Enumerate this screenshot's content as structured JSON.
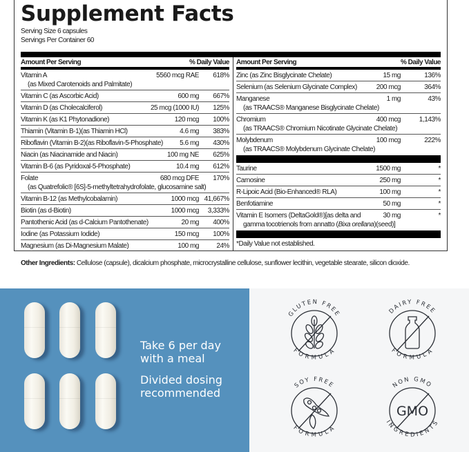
{
  "title": "Supplement Facts",
  "serving_size": "Serving Size 6 capsules",
  "servings_per_container": "Servings Per Container 60",
  "header": {
    "amount": "Amount Per Serving",
    "dv": "% Daily Value"
  },
  "left_rows": [
    {
      "name": "Vitamin A",
      "sub": "(as Mixed Carotenoids and Palmitate)",
      "amount": "5560 mcg RAE",
      "dv": "618%"
    },
    {
      "name": "Vitamin C (as Ascorbic Acid)",
      "amount": "600 mg",
      "dv": "667%"
    },
    {
      "name": "Vitamin D (as Cholecalciferol)",
      "amount": "25 mcg (1000 IU)",
      "dv": "125%"
    },
    {
      "name": "Vitamin K (as K1 Phytonadione)",
      "amount": "120 mcg",
      "dv": "100%"
    },
    {
      "name": "Thiamin (Vitamin B-1)(as Thiamin HCl)",
      "amount": "4.6 mg",
      "dv": "383%"
    },
    {
      "name": "Riboflavin (Vitamin B-2)(as Riboflavin-5-Phosphate)",
      "amount": "5.6 mg",
      "dv": "430%"
    },
    {
      "name": "Niacin (as Niacinamide and Niacin)",
      "amount": "100 mg NE",
      "dv": "625%"
    },
    {
      "name": "Vitamin B-6 (as Pyridoxal-5-Phosphate)",
      "amount": "10.4 mg",
      "dv": "612%"
    },
    {
      "name": "Folate",
      "sub": "(as Quatrefolic® [6S]-5-methyltetrahydrofolate, glucosamine salt)",
      "amount": "680 mcg DFE",
      "dv": "170%"
    },
    {
      "name": "Vitamin B-12 (as Methylcobalamin)",
      "amount": "1000 mcg",
      "dv": "41,667%"
    },
    {
      "name": "Biotin (as d-Biotin)",
      "amount": "1000 mcg",
      "dv": "3,333%"
    },
    {
      "name": "Pantothenic Acid (as d-Calcium Pantothenate)",
      "amount": "20 mg",
      "dv": "400%"
    },
    {
      "name": "Iodine (as Potassium Iodide)",
      "amount": "150 mcg",
      "dv": "100%"
    },
    {
      "name": "Magnesium (as Di-Magnesium Malate)",
      "amount": "100 mg",
      "dv": "24%"
    }
  ],
  "right_rows": [
    {
      "name": "Zinc (as Zinc Bisglycinate Chelate)",
      "amount": "15 mg",
      "dv": "136%"
    },
    {
      "name": "Selenium (as Selenium Glycinate Complex)",
      "amount": "200 mcg",
      "dv": "364%"
    },
    {
      "name": "Manganese",
      "sub": "(as TRAACS® Manganese Bisglycinate Chelate)",
      "amount": "1 mg",
      "dv": "43%"
    },
    {
      "name": "Chromium",
      "sub": "(as TRAACS® Chromium Nicotinate Glycinate Chelate)",
      "amount": "400 mcg",
      "dv": "1,143%"
    },
    {
      "name": "Molybdenum",
      "sub": "(as TRAACS® Molybdenum Glycinate Chelate)",
      "amount": "100 mcg",
      "dv": "222%"
    }
  ],
  "right_rows2": [
    {
      "name": "Taurine",
      "amount": "1500 mg",
      "dv": "*"
    },
    {
      "name": "Carnosine",
      "amount": "250 mg",
      "dv": "*"
    },
    {
      "name": "R-Lipoic Acid (Bio-Enhanced® RLA)",
      "amount": "100 mg",
      "dv": "*"
    },
    {
      "name": "Benfotiamine",
      "amount": "50 mg",
      "dv": "*"
    },
    {
      "name": "Vitamin E Isomers (DeltaGold®)[as delta and",
      "sub": [
        {
          "t": "gamma tocotrienols from annatto ("
        },
        {
          "t": "Bixa orellana",
          "i": true
        },
        {
          "t": ")(seed)]"
        }
      ],
      "amount": "30 mg",
      "dv": "*"
    }
  ],
  "footnote": "*Daily Value not established.",
  "other_ingredients": {
    "label": "Other Ingredients:",
    "text": " Cellulose (capsule), dicalcium phosphate, microcrystalline cellulose, sunflower lecithin, vegetable stearate, silicon dioxide."
  },
  "dosing": {
    "line1": "Take 6 per day",
    "line2": "with a meal",
    "line3": "Divided dosing",
    "line4": "recommended"
  },
  "badges": [
    {
      "top": "GLUTEN FREE",
      "bottom": "FORMULA",
      "icon": "wheat-icon"
    },
    {
      "top": "DAIRY FREE",
      "bottom": "FORMULA",
      "icon": "milk-bottle-icon"
    },
    {
      "top": "SOY FREE",
      "bottom": "FORMULA",
      "icon": "soybean-icon"
    },
    {
      "top": "NON GMO",
      "bottom": "INGREDIENTS",
      "icon": "gmo-icon",
      "center": "GMO"
    }
  ],
  "colors": {
    "panel_blue": "#5591bd",
    "panel_grey": "#f5f6f7",
    "ink": "#1a1a1a",
    "badge_ink": "#2b2f36"
  }
}
